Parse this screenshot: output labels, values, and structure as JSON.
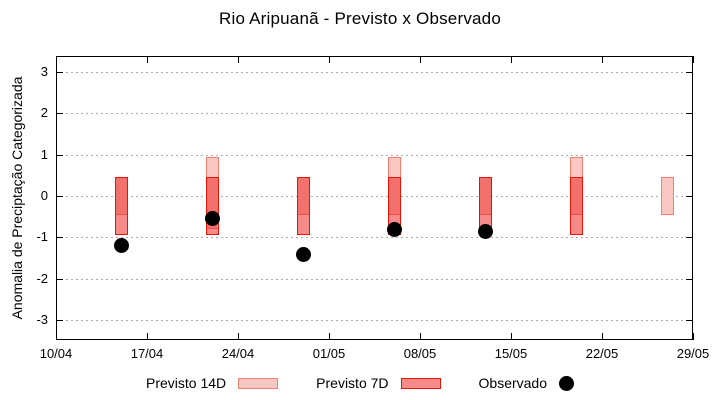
{
  "title": "Rio Aripuanã - Previsto x Observado",
  "y_axis_label": "Anomalia de Preciptação Categorizada",
  "colors": {
    "previsto_14d_fill": "#f9c8c2",
    "previsto_14d_border": "#ef8074",
    "previsto_7d_fill": "rgba(237,32,28,0.52)",
    "previsto_7d_border": "#e51607",
    "observado": "#000000",
    "grid": "#ababab",
    "axis": "#000000",
    "background": "#ffffff"
  },
  "chart_data": {
    "type": "range-bar+scatter",
    "title": "Rio Aripuanã - Previsto x Observado",
    "xlabel": "",
    "ylabel": "Anomalia de Preciptação Categorizada",
    "ylim": [
      -3.48,
      3.38
    ],
    "grid": true,
    "legend_position": "bottom-center",
    "yticks": [
      {
        "label": "3",
        "value": 3
      },
      {
        "label": "2",
        "value": 2
      },
      {
        "label": "1",
        "value": 1
      },
      {
        "label": "0",
        "value": 0
      },
      {
        "label": "-1",
        "value": -1
      },
      {
        "label": "-2",
        "value": -2
      },
      {
        "label": "-3",
        "value": -3
      }
    ],
    "xticks": [
      {
        "label": "10/04",
        "day": 0
      },
      {
        "label": "17/04",
        "day": 7
      },
      {
        "label": "24/04",
        "day": 14
      },
      {
        "label": "01/05",
        "day": 21
      },
      {
        "label": "08/05",
        "day": 28
      },
      {
        "label": "15/05",
        "day": 35
      },
      {
        "label": "22/05",
        "day": 42
      },
      {
        "label": "29/05",
        "day": 49
      }
    ],
    "days_span": 49,
    "series": [
      {
        "name": "Previsto 14D",
        "type": "range",
        "style": "previsto_14d",
        "data": [
          {
            "date": "15/04",
            "day": 5,
            "high": 0.45,
            "low": -0.45
          },
          {
            "date": "22/04",
            "day": 12,
            "high": 0.95,
            "low": -0.8
          },
          {
            "date": "29/04",
            "day": 19,
            "high": 0.45,
            "low": -0.45
          },
          {
            "date": "06/05",
            "day": 26,
            "high": 0.95,
            "low": -0.45
          },
          {
            "date": "13/05",
            "day": 33,
            "high": 0.45,
            "low": -0.45
          },
          {
            "date": "20/05",
            "day": 40,
            "high": 0.95,
            "low": -0.45
          },
          {
            "date": "27/05",
            "day": 47,
            "high": 0.45,
            "low": -0.45
          }
        ]
      },
      {
        "name": "Previsto 7D",
        "type": "range",
        "style": "previsto_7d",
        "data": [
          {
            "date": "15/04",
            "day": 5,
            "high": 0.45,
            "low": -0.95
          },
          {
            "date": "22/04",
            "day": 12,
            "high": 0.45,
            "low": -0.95
          },
          {
            "date": "29/04",
            "day": 19,
            "high": 0.45,
            "low": -0.95
          },
          {
            "date": "06/05",
            "day": 26,
            "high": 0.45,
            "low": -0.95
          },
          {
            "date": "13/05",
            "day": 33,
            "high": 0.45,
            "low": -0.95
          },
          {
            "date": "20/05",
            "day": 40,
            "high": 0.45,
            "low": -0.95
          }
        ]
      },
      {
        "name": "Observado",
        "type": "scatter",
        "style": "observado",
        "data": [
          {
            "date": "15/04",
            "day": 5,
            "value": -1.2
          },
          {
            "date": "22/04",
            "day": 12,
            "value": -0.55
          },
          {
            "date": "29/04",
            "day": 19,
            "value": -1.4
          },
          {
            "date": "06/05",
            "day": 26,
            "value": -0.8
          },
          {
            "date": "13/05",
            "day": 33,
            "value": -0.85
          }
        ]
      }
    ],
    "legend": [
      {
        "label": "Previsto 14D",
        "key": "box-14d"
      },
      {
        "label": "Previsto 7D",
        "key": "box-7d"
      },
      {
        "label": "Observado",
        "key": "dot-observado"
      }
    ]
  }
}
